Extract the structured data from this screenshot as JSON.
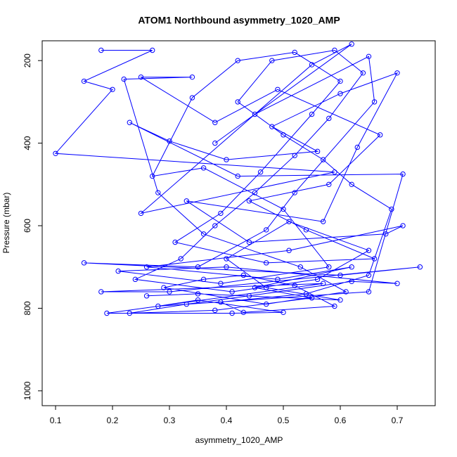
{
  "chart_data": {
    "type": "scatter",
    "lines": true,
    "color": "#0000ff",
    "title": "ATOM1 Northbound asymmetry_1020_AMP",
    "x_label": "asymmetry_1020_AMP",
    "y_label": "Pressure (mbar)",
    "xlim": [
      0.0765,
      0.7667
    ],
    "ylim": [
      1036,
      152
    ],
    "xticks": [
      0.1,
      0.2,
      0.3,
      0.4,
      0.5,
      0.6,
      0.7
    ],
    "yticks": [
      200,
      400,
      600,
      800,
      1000
    ],
    "x": [
      0.18,
      0.27,
      0.15,
      0.2,
      0.1,
      0.59,
      0.25,
      0.55,
      0.62,
      0.38,
      0.45,
      0.65,
      0.66,
      0.52,
      0.47,
      0.35,
      0.15,
      0.6,
      0.74,
      0.3,
      0.18,
      0.57,
      0.19,
      0.41,
      0.5,
      0.35,
      0.28,
      0.65,
      0.71,
      0.42,
      0.23,
      0.3,
      0.4,
      0.56,
      0.48,
      0.6,
      0.7,
      0.63,
      0.57,
      0.33,
      0.44,
      0.68,
      0.71,
      0.51,
      0.26,
      0.49,
      0.62,
      0.45,
      0.55,
      0.38,
      0.23,
      0.33,
      0.44,
      0.62,
      0.7,
      0.4,
      0.21,
      0.39,
      0.58,
      0.5,
      0.36,
      0.27,
      0.34,
      0.42,
      0.52,
      0.6,
      0.55,
      0.46,
      0.39,
      0.31,
      0.47,
      0.66,
      0.54,
      0.44,
      0.58,
      0.67,
      0.49,
      0.38,
      0.25,
      0.34,
      0.22,
      0.28,
      0.36,
      0.53,
      0.61,
      0.47,
      0.29,
      0.36,
      0.43,
      0.52,
      0.59,
      0.43,
      0.39,
      0.54,
      0.65,
      0.69,
      0.62,
      0.57,
      0.5,
      0.42,
      0.48,
      0.59,
      0.64,
      0.58,
      0.52,
      0.45,
      0.38,
      0.32,
      0.24,
      0.41,
      0.56,
      0.65,
      0.51,
      0.4,
      0.47,
      0.6,
      0.35,
      0.26
    ],
    "values": [
      175,
      175,
      250,
      270,
      425,
      470,
      570,
      210,
      160,
      400,
      330,
      190,
      300,
      520,
      610,
      700,
      690,
      720,
      700,
      760,
      760,
      740,
      812,
      812,
      810,
      780,
      795,
      760,
      475,
      480,
      350,
      395,
      440,
      420,
      360,
      280,
      230,
      410,
      590,
      540,
      640,
      620,
      600,
      660,
      700,
      730,
      700,
      750,
      775,
      805,
      812,
      790,
      770,
      735,
      740,
      700,
      710,
      740,
      700,
      560,
      460,
      480,
      290,
      200,
      180,
      250,
      330,
      470,
      570,
      640,
      690,
      680,
      610,
      540,
      500,
      380,
      270,
      350,
      240,
      240,
      245,
      520,
      620,
      700,
      760,
      790,
      750,
      730,
      720,
      745,
      795,
      810,
      785,
      765,
      720,
      560,
      500,
      440,
      380,
      300,
      200,
      175,
      230,
      340,
      430,
      520,
      600,
      680,
      730,
      760,
      730,
      660,
      590,
      680,
      750,
      780,
      765,
      770
    ]
  }
}
